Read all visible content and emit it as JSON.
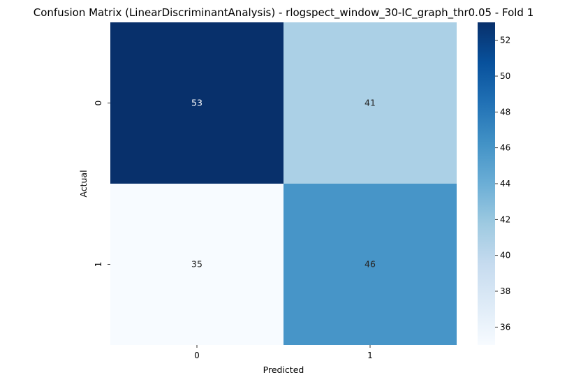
{
  "chart_data": {
    "type": "heatmap",
    "title": "Confusion Matrix (LinearDiscriminantAnalysis) - rlogspect_window_30-IC_graph_thr0.05 - Fold 1",
    "xlabel": "Predicted",
    "ylabel": "Actual",
    "x_categories": [
      "0",
      "1"
    ],
    "y_categories": [
      "0",
      "1"
    ],
    "values": [
      [
        53,
        41
      ],
      [
        35,
        46
      ]
    ],
    "colormap": "Blues",
    "colorbar": {
      "range": [
        35,
        53
      ],
      "ticks": [
        36,
        38,
        40,
        42,
        44,
        46,
        48,
        50,
        52
      ],
      "tick_labels": [
        "36",
        "38",
        "40",
        "42",
        "44",
        "46",
        "48",
        "50",
        "52"
      ]
    },
    "grid": false,
    "annotations": true
  }
}
